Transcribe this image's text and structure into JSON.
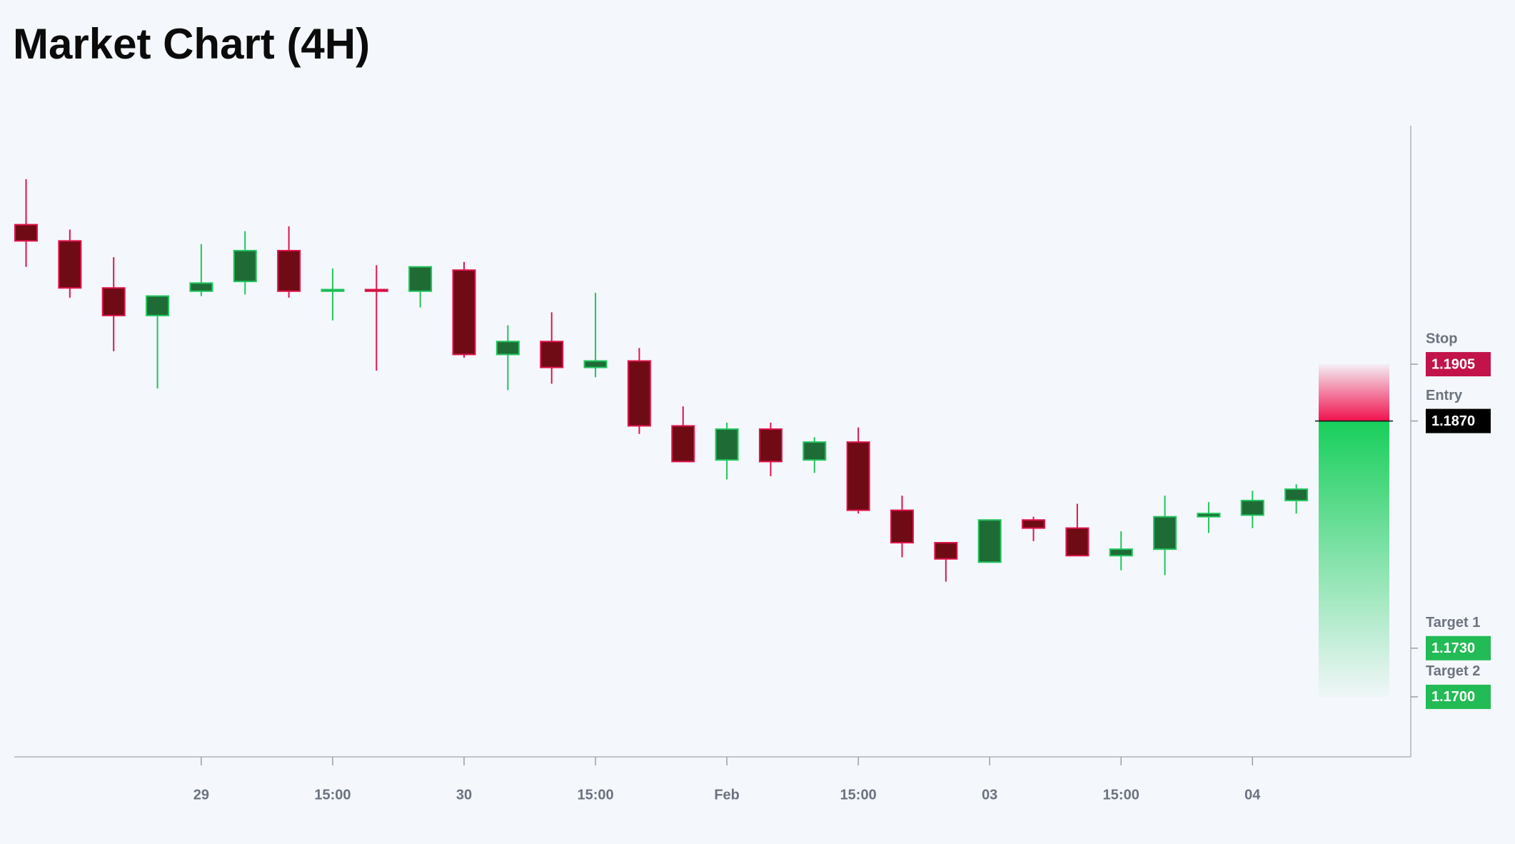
{
  "chart_data": {
    "type": "candlestick",
    "title": "Market Chart (4H)",
    "categories": [
      null,
      null,
      null,
      null,
      "29",
      null,
      null,
      "15:00",
      null,
      null,
      "30",
      null,
      null,
      "15:00",
      null,
      null,
      "Feb",
      null,
      null,
      "15:00",
      null,
      null,
      "03",
      null,
      null,
      "15:00",
      null,
      null,
      "04",
      null
    ],
    "open": [
      1.1991,
      1.1981,
      1.1952,
      1.1935,
      1.195,
      1.1956,
      1.1975,
      1.195,
      1.1951,
      1.195,
      1.1963,
      1.1911,
      1.1919,
      1.1903,
      1.1907,
      1.1867,
      1.1846,
      1.1865,
      1.1846,
      1.1857,
      1.1815,
      1.1795,
      1.1783,
      1.1809,
      1.1804,
      1.1787,
      1.1791,
      1.1811,
      1.1812,
      1.1821
    ],
    "high": [
      1.2019,
      1.1988,
      1.1971,
      1.1947,
      1.1979,
      1.1987,
      1.199,
      1.1964,
      1.1966,
      1.1965,
      1.1968,
      1.1929,
      1.1937,
      1.1949,
      1.1915,
      1.1879,
      1.1869,
      1.1869,
      1.186,
      1.1866,
      1.1824,
      1.1795,
      1.1809,
      1.1811,
      1.1819,
      1.1802,
      1.1824,
      1.182,
      1.1827,
      1.1831
    ],
    "low": [
      1.1965,
      1.1946,
      1.1913,
      1.189,
      1.1947,
      1.1948,
      1.1946,
      1.1932,
      1.1901,
      1.194,
      1.1909,
      1.1889,
      1.1893,
      1.1897,
      1.1862,
      1.1845,
      1.1834,
      1.1836,
      1.1838,
      1.1813,
      1.1786,
      1.1771,
      1.1783,
      1.1796,
      1.1787,
      1.1778,
      1.1775,
      1.1801,
      1.1804,
      1.1813
    ],
    "close": [
      1.1981,
      1.1952,
      1.1935,
      1.1947,
      1.1955,
      1.1975,
      1.195,
      1.1951,
      1.195,
      1.1965,
      1.1911,
      1.1919,
      1.1903,
      1.1907,
      1.1867,
      1.1845,
      1.1865,
      1.1845,
      1.1857,
      1.1815,
      1.1795,
      1.1785,
      1.1809,
      1.1804,
      1.1787,
      1.1791,
      1.1811,
      1.1813,
      1.1821,
      1.1828
    ],
    "up_color": "#1f6b36",
    "up_edge_color": "#22c55e",
    "down_color": "#6e0b14",
    "down_edge_color": "#e0144c",
    "ylim": [
      1.1663,
      1.2052
    ],
    "grid": false,
    "levels": [
      {
        "name": "Stop",
        "value": 1.1905,
        "label": "1.1905",
        "color": "#c2134a"
      },
      {
        "name": "Entry",
        "value": 1.187,
        "label": "1.1870",
        "color": "#000000"
      },
      {
        "name": "Target 1",
        "value": 1.173,
        "label": "1.1730",
        "color": "#22bb55"
      },
      {
        "name": "Target 2",
        "value": 1.17,
        "label": "1.1700",
        "color": "#22bb55"
      }
    ]
  }
}
